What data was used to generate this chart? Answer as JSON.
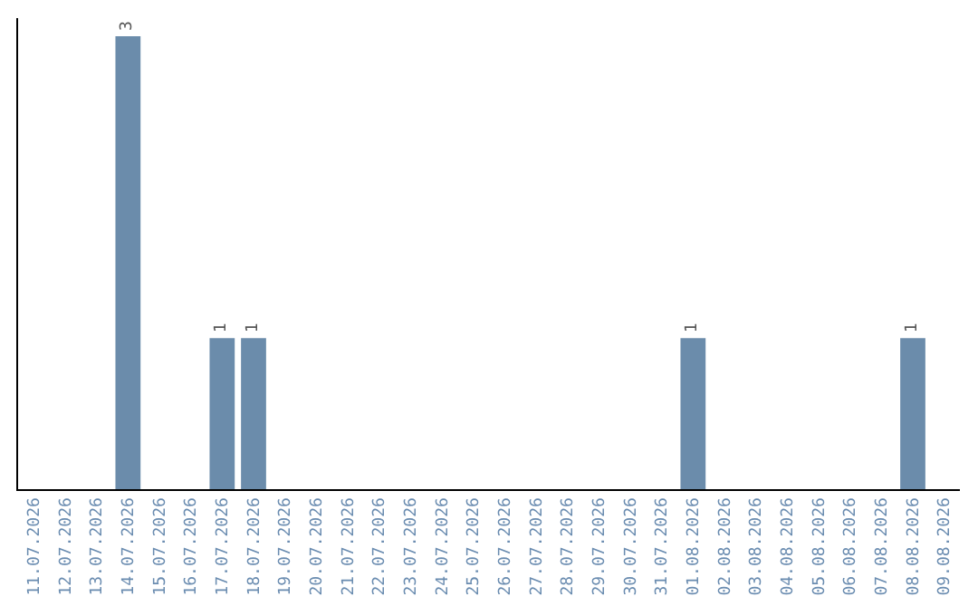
{
  "chart_data": {
    "type": "bar",
    "categories": [
      "11.07.2026",
      "12.07.2026",
      "13.07.2026",
      "14.07.2026",
      "15.07.2026",
      "16.07.2026",
      "17.07.2026",
      "18.07.2026",
      "19.07.2026",
      "20.07.2026",
      "21.07.2026",
      "22.07.2026",
      "23.07.2026",
      "24.07.2026",
      "25.07.2026",
      "26.07.2026",
      "27.07.2026",
      "28.07.2026",
      "29.07.2026",
      "30.07.2026",
      "31.07.2026",
      "01.08.2026",
      "02.08.2026",
      "03.08.2026",
      "04.08.2026",
      "05.08.2026",
      "06.08.2026",
      "07.08.2026",
      "08.08.2026",
      "09.08.2026"
    ],
    "values": [
      0,
      0,
      0,
      3,
      0,
      0,
      1,
      1,
      0,
      0,
      0,
      0,
      0,
      0,
      0,
      0,
      0,
      0,
      0,
      0,
      0,
      1,
      0,
      0,
      0,
      0,
      0,
      0,
      1,
      0
    ],
    "value_labels": [
      null,
      null,
      null,
      "3",
      null,
      null,
      "1",
      "1",
      null,
      null,
      null,
      null,
      null,
      null,
      null,
      null,
      null,
      null,
      null,
      null,
      null,
      "1",
      null,
      null,
      null,
      null,
      null,
      null,
      "1",
      null
    ],
    "color": "#6b8cab",
    "tick_labels": "x",
    "legend": false
  }
}
